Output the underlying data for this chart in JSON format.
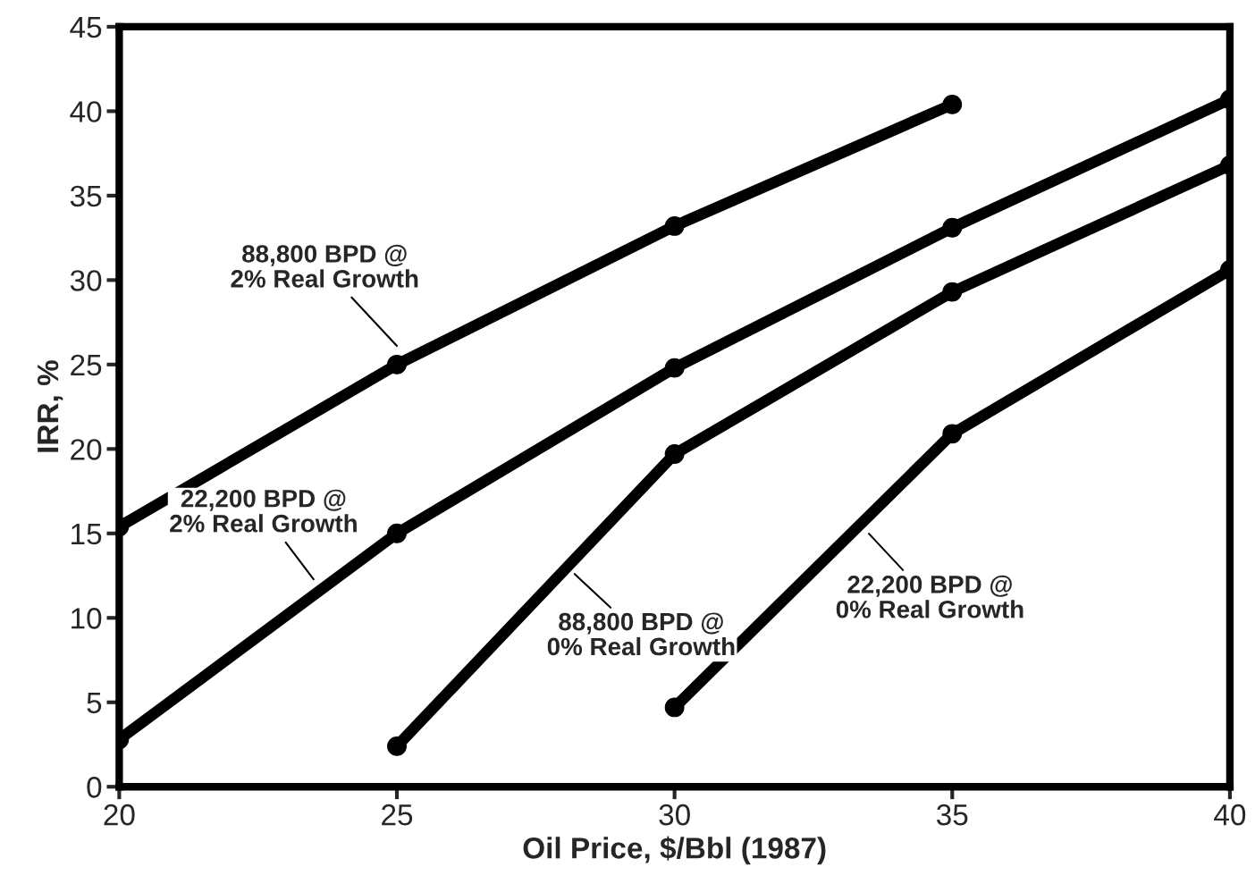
{
  "chart_data": {
    "type": "line",
    "xlabel": "Oil Price, $/Bbl (1987)",
    "ylabel": "IRR, %",
    "xlim": [
      20,
      40
    ],
    "xticks": [
      20,
      25,
      30,
      35,
      40
    ],
    "ylim": [
      0,
      45
    ],
    "yticks": [
      0,
      5,
      10,
      15,
      20,
      25,
      30,
      35,
      40,
      45
    ],
    "grid": false,
    "legend": false,
    "marker": "circle",
    "line_style": "solid",
    "series": [
      {
        "color": "#000000",
        "x": [
          20,
          25,
          30,
          35
        ],
        "values": [
          15.4,
          25.0,
          33.2,
          40.4
        ]
      },
      {
        "color": "#000000",
        "x": [
          20,
          25,
          30,
          35,
          40
        ],
        "values": [
          2.8,
          15.0,
          24.8,
          33.1,
          40.7
        ]
      },
      {
        "color": "#000000",
        "x": [
          25,
          30,
          35,
          40
        ],
        "values": [
          2.4,
          19.7,
          29.3,
          36.8
        ]
      },
      {
        "color": "#000000",
        "x": [
          30,
          35,
          40
        ],
        "values": [
          4.7,
          20.9,
          30.6
        ]
      }
    ],
    "annotations": [
      "88,800 BPD @\n2% Real Growth",
      "22,200 BPD @\n2% Real Growth",
      "88,800 BPD @\n0% Real Growth",
      "22,200 BPD @\n0% Real Growth"
    ]
  }
}
